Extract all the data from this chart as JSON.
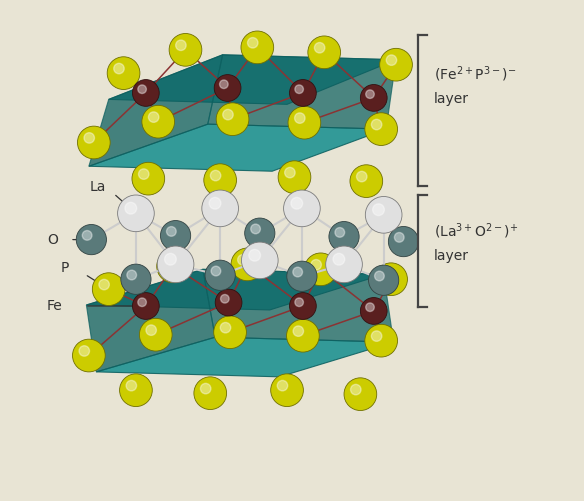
{
  "bg_color": "#e8e4d4",
  "label_fe2_p3_line1": "(Fe$^{2+}$P$^{3-}$)$^{-}$",
  "label_fe2_p3_line2": "layer",
  "label_la3_o2_line1": "(La$^{3+}$O$^{2-}$)$^{+}$",
  "label_la3_o2_line2": "layer",
  "label_La": "La",
  "label_O": "O",
  "label_P": "P",
  "label_Fe": "Fe",
  "color_P": "#cccc00",
  "color_Fe": "#5a1f1f",
  "color_La": "#e0e0e0",
  "color_O": "#5a7a7a",
  "color_teal": "#1a9090",
  "color_teal_dark": "#0d6060",
  "color_bond_fe": "#8b3333",
  "color_bond_la": "#cccccc",
  "font_size_label": 10,
  "font_size_atom": 10,
  "bracket_color": "#444444"
}
